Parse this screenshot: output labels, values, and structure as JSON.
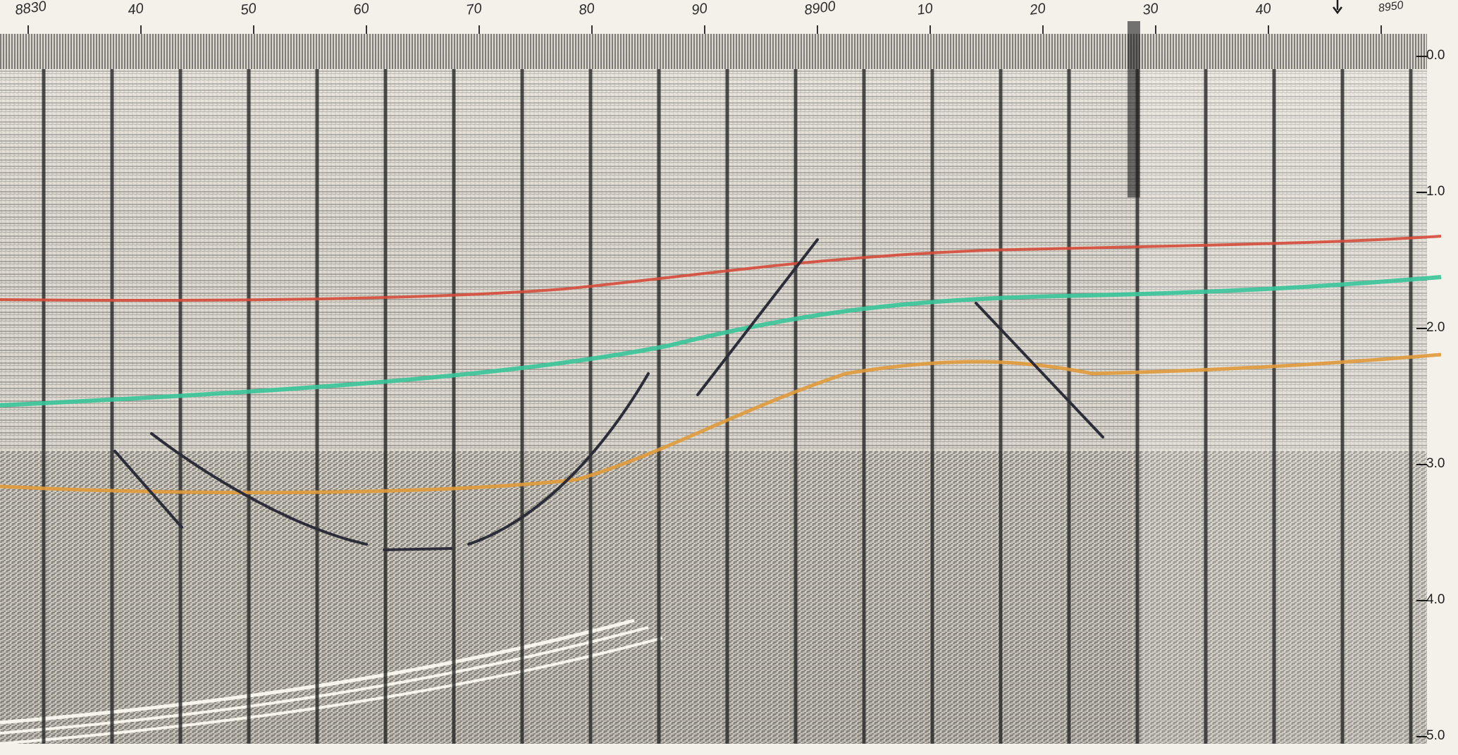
{
  "section": {
    "cdp_labels": [
      "8830",
      "40",
      "50",
      "60",
      "70",
      "80",
      "90",
      "8900",
      "10",
      "20",
      "30",
      "40",
      "8950"
    ],
    "time_labels": [
      "0.0",
      "1.0",
      "2.0",
      "3.0",
      "4.0",
      "5.0"
    ],
    "horizons": [
      {
        "color": "#d64b3a"
      },
      {
        "color": "#39c59a"
      },
      {
        "color": "#e09a3a"
      }
    ]
  }
}
